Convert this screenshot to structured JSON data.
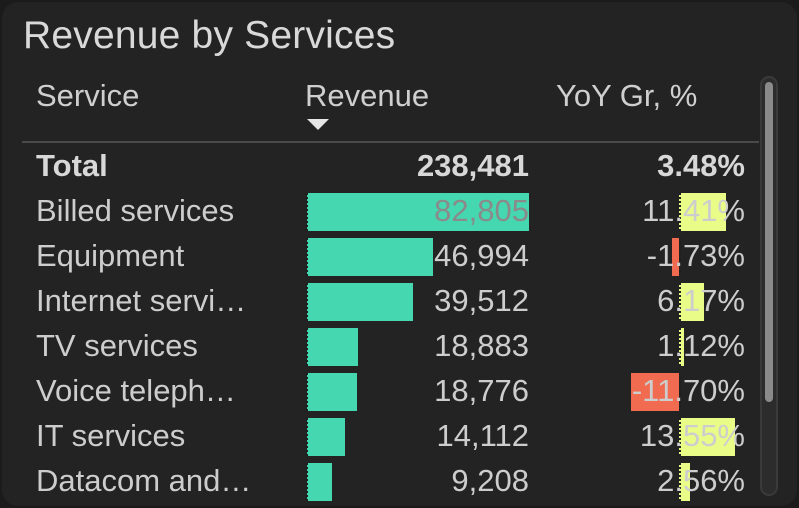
{
  "widget": {
    "title": "Revenue by Services",
    "columns": {
      "service": "Service",
      "revenue": "Revenue",
      "yoy": "YoY Gr, %"
    },
    "sort": {
      "column": "revenue",
      "direction": "descending"
    },
    "colors": {
      "revenue_bar": "#45d7b0",
      "yoy_positive": "#eafc88",
      "yoy_negative": "#f06b50"
    },
    "total": {
      "label": "Total",
      "revenue": "238,481",
      "yoy": "3.48%"
    },
    "rows": [
      {
        "service": "Billed services",
        "revenue": "82,805",
        "revenue_value": 82805,
        "yoy": "11.41%",
        "yoy_value": 11.41
      },
      {
        "service": "Equipment",
        "revenue": "46,994",
        "revenue_value": 46994,
        "yoy": "-1.73%",
        "yoy_value": -1.73
      },
      {
        "service": "Internet servi…",
        "revenue": "39,512",
        "revenue_value": 39512,
        "yoy": "6.17%",
        "yoy_value": 6.17
      },
      {
        "service": "TV services",
        "revenue": "18,883",
        "revenue_value": 18883,
        "yoy": "1.12%",
        "yoy_value": 1.12
      },
      {
        "service": "Voice teleph…",
        "revenue": "18,776",
        "revenue_value": 18776,
        "yoy": "-11.70%",
        "yoy_value": -11.7
      },
      {
        "service": "IT services",
        "revenue": "14,112",
        "revenue_value": 14112,
        "yoy": "13.55%",
        "yoy_value": 13.55
      },
      {
        "service": "Datacom and…",
        "revenue": "9,208",
        "revenue_value": 9208,
        "yoy": "2.56%",
        "yoy_value": 2.56
      }
    ]
  }
}
